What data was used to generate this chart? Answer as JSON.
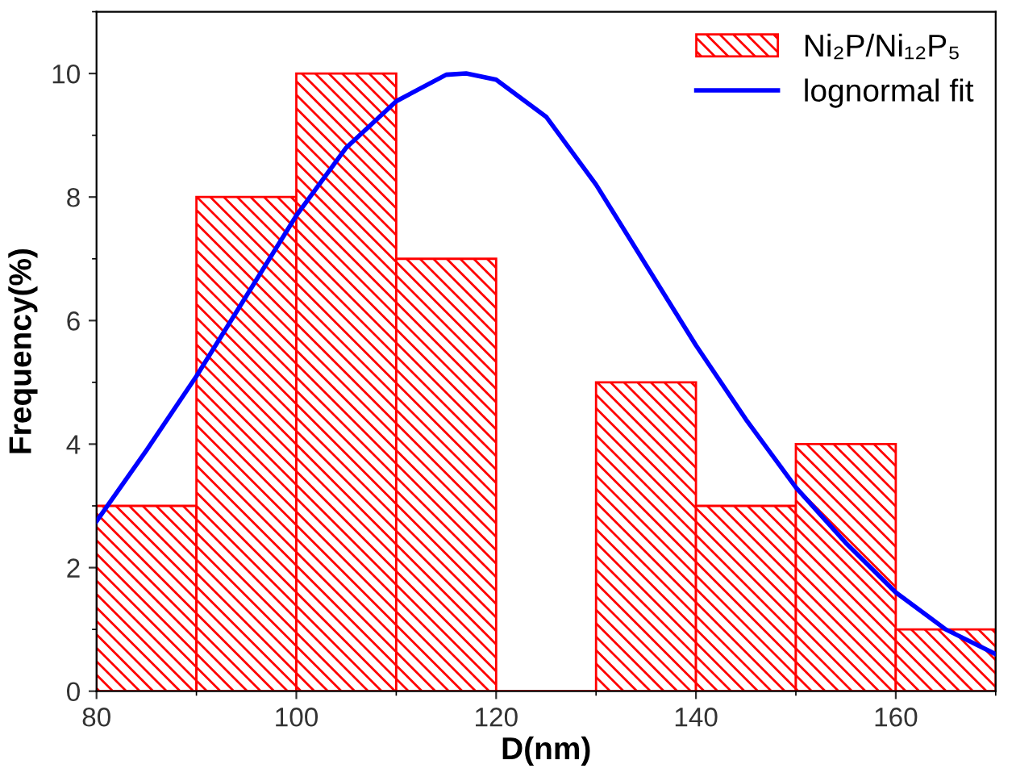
{
  "chart_data": {
    "type": "histogram",
    "xlabel": "D(nm)",
    "ylabel": "Frequency(%)",
    "xlim": [
      80,
      170
    ],
    "xticks": [
      80,
      100,
      120,
      140,
      160
    ],
    "ylim": [
      0,
      11
    ],
    "yticks": [
      0,
      2,
      4,
      6,
      8,
      10
    ],
    "legend": "top right",
    "grid": false,
    "series": [
      {
        "name": "Ni₂P/Ni₁₂P₅",
        "color": "#ff0000",
        "bins": [
          80,
          90,
          100,
          110,
          120,
          130,
          140,
          150,
          160,
          170
        ],
        "values": [
          3,
          8,
          10,
          7,
          0,
          5,
          3,
          4,
          1
        ]
      },
      {
        "type": "line",
        "name": "lognormal fit",
        "color": "#0000ff",
        "x": [
          80,
          85,
          90,
          95,
          100,
          105,
          110,
          115,
          117,
          120,
          125,
          130,
          135,
          140,
          145,
          150,
          155,
          160,
          165,
          170
        ],
        "values": [
          2.75,
          3.9,
          5.1,
          6.4,
          7.7,
          8.8,
          9.55,
          9.98,
          10.0,
          9.9,
          9.3,
          8.2,
          6.9,
          5.6,
          4.4,
          3.3,
          2.4,
          1.6,
          1.0,
          0.6
        ]
      }
    ]
  }
}
